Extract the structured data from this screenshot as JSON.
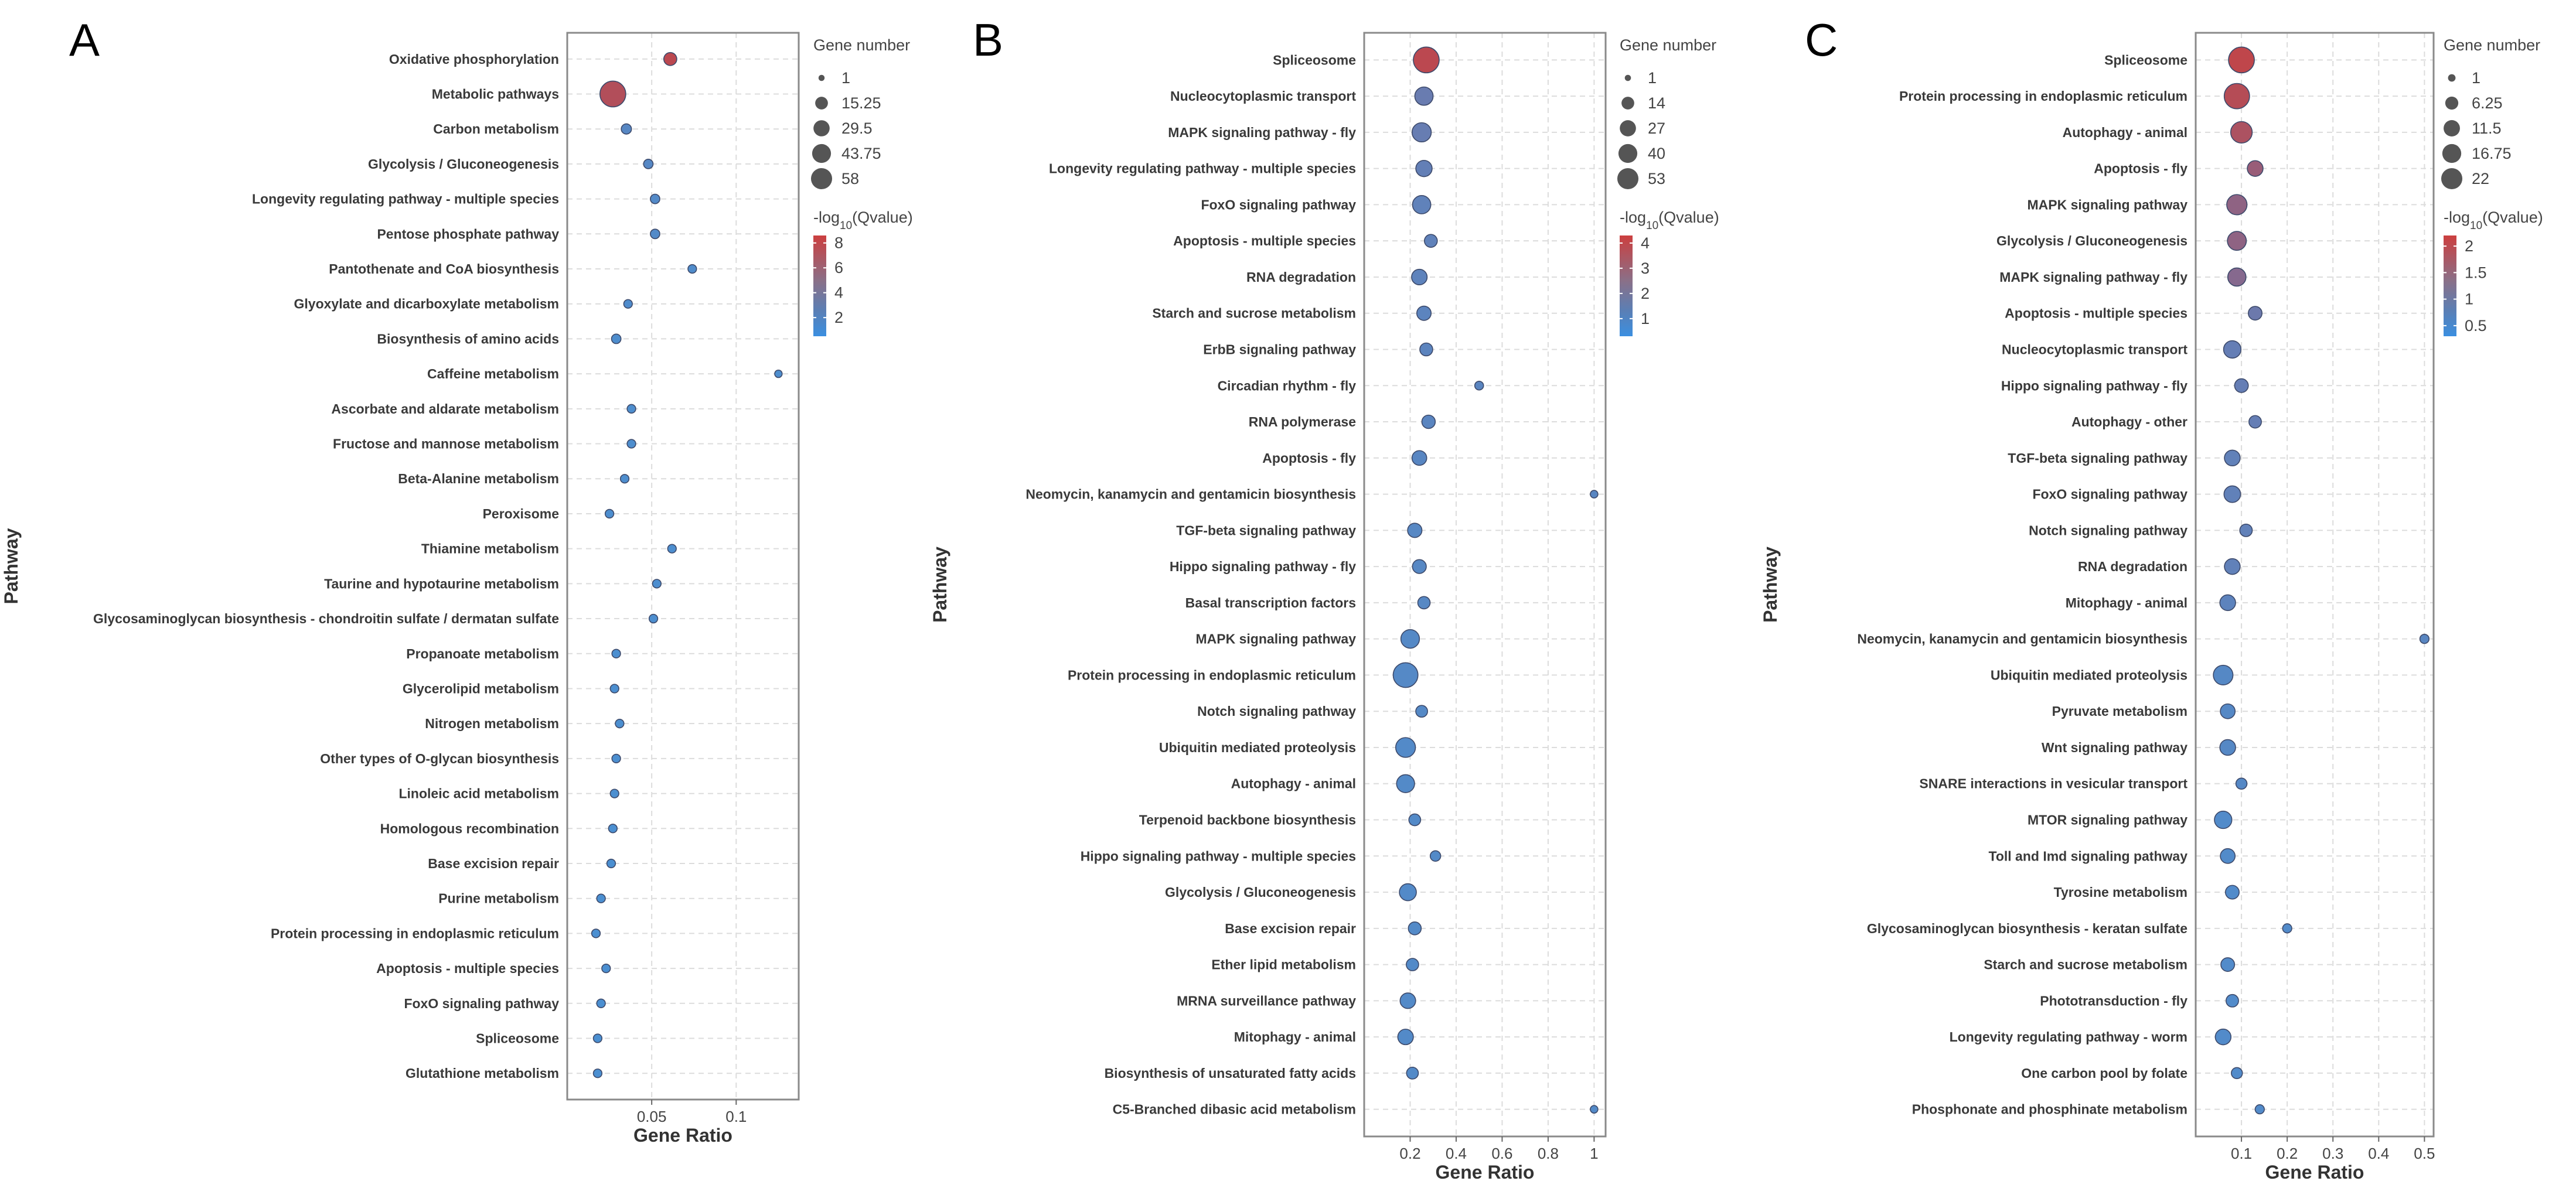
{
  "chart_data": [
    {
      "type": "scatter",
      "panel": "A",
      "xlabel": "Gene Ratio",
      "ylabel": "Pathway",
      "xlim": [
        0,
        0.137
      ],
      "xticks": [
        0.05,
        0.1
      ],
      "xtick_labels": [
        "0.05",
        "0.1"
      ],
      "size_legend_title": "Gene number",
      "size_legend": [
        1,
        15.25,
        29.5,
        43.75,
        58
      ],
      "size_legend_labels": [
        "1",
        "15.25",
        "29.5",
        "43.75",
        "58"
      ],
      "color_legend_title": "-log10(Qvalue)",
      "color_range": [
        0.5,
        8.6
      ],
      "color_ticks": [
        8,
        6,
        4,
        2
      ],
      "color_tick_labels": [
        "8",
        "6",
        "4",
        "2"
      ],
      "pathways": [
        "Oxidative phosphorylation",
        "Metabolic pathways",
        "Carbon metabolism",
        "Glycolysis / Gluconeogenesis",
        "Longevity regulating pathway - multiple species",
        "Pentose phosphate pathway",
        "Pantothenate and CoA biosynthesis",
        "Glyoxylate and dicarboxylate metabolism",
        "Biosynthesis of amino acids",
        "Caffeine metabolism",
        "Ascorbate and aldarate metabolism",
        "Fructose and mannose metabolism",
        "Beta-Alanine metabolism",
        "Peroxisome",
        "Thiamine metabolism",
        "Taurine and hypotaurine metabolism",
        "Glycosaminoglycan biosynthesis - chondroitin sulfate / dermatan sulfate",
        "Propanoate metabolism",
        "Glycerolipid metabolism",
        "Nitrogen metabolism",
        "Other types of O-glycan biosynthesis",
        "Linoleic acid metabolism",
        "Homologous recombination",
        "Base excision repair",
        "Purine metabolism",
        "Protein processing in endoplasmic reticulum",
        "Apoptosis - multiple species",
        "FoxO signaling pathway",
        "Spliceosome",
        "Glutathione metabolism"
      ],
      "gene_ratio": [
        0.061,
        0.027,
        0.035,
        0.048,
        0.052,
        0.052,
        0.074,
        0.036,
        0.029,
        0.125,
        0.038,
        0.038,
        0.034,
        0.025,
        0.062,
        0.053,
        0.051,
        0.029,
        0.028,
        0.031,
        0.029,
        0.028,
        0.027,
        0.026,
        0.02,
        0.017,
        0.023,
        0.02,
        0.018,
        0.018
      ],
      "gene_number": [
        9,
        58,
        4,
        3,
        3,
        3,
        2,
        2,
        3,
        1,
        2,
        2,
        2,
        2,
        2,
        2,
        2,
        2,
        2,
        2,
        2,
        2,
        2,
        2,
        2,
        2,
        2,
        2,
        2,
        2
      ],
      "neg_log10_q": [
        8,
        7.6,
        2,
        1.8,
        1.5,
        1.5,
        1.2,
        1.1,
        1,
        0.9,
        0.9,
        0.9,
        0.9,
        0.8,
        0.8,
        0.8,
        0.8,
        0.7,
        0.7,
        0.7,
        0.7,
        0.7,
        0.6,
        0.6,
        0.6,
        0.6,
        0.6,
        0.6,
        0.6,
        0.6
      ]
    },
    {
      "type": "scatter",
      "panel": "B",
      "xlabel": "Gene Ratio",
      "ylabel": "Pathway",
      "xlim": [
        0,
        1.05
      ],
      "xticks": [
        0.2,
        0.4,
        0.6,
        0.8,
        1
      ],
      "xtick_labels": [
        "0.2",
        "0.4",
        "0.6",
        "0.8",
        "1"
      ],
      "size_legend_title": "Gene number",
      "size_legend": [
        1,
        14,
        27,
        40,
        53
      ],
      "size_legend_labels": [
        "1",
        "14",
        "27",
        "40",
        "53"
      ],
      "color_legend_title": "-log10(Qvalue)",
      "color_range": [
        0.3,
        4.3
      ],
      "color_ticks": [
        4,
        3,
        2,
        1
      ],
      "color_tick_labels": [
        "4",
        "3",
        "2",
        "1"
      ],
      "pathways": [
        "Spliceosome",
        "Nucleocytoplasmic transport",
        "MAPK signaling pathway - fly",
        "Longevity regulating pathway - multiple species",
        "FoxO signaling pathway",
        "Apoptosis - multiple species",
        "RNA degradation",
        "Starch and sucrose metabolism",
        "ErbB signaling pathway",
        "Circadian rhythm - fly",
        "RNA polymerase",
        "Apoptosis - fly",
        "Neomycin, kanamycin and gentamicin biosynthesis",
        "TGF-beta signaling pathway",
        "Hippo signaling pathway - fly",
        "Basal transcription factors",
        "MAPK signaling pathway",
        "Protein processing in endoplasmic reticulum",
        "Notch signaling pathway",
        "Ubiquitin mediated proteolysis",
        "Autophagy - animal",
        "Terpenoid backbone biosynthesis",
        "Hippo signaling pathway - multiple species",
        "Glycolysis / Gluconeogenesis",
        "Base excision repair",
        "Ether lipid metabolism",
        "MRNA surveillance pathway",
        "Mitophagy - animal",
        "Biosynthesis of unsaturated fatty acids",
        "C5-Branched dibasic acid metabolism"
      ],
      "gene_ratio": [
        0.27,
        0.26,
        0.25,
        0.26,
        0.25,
        0.29,
        0.24,
        0.26,
        0.27,
        0.5,
        0.28,
        0.24,
        1,
        0.22,
        0.24,
        0.26,
        0.2,
        0.18,
        0.25,
        0.18,
        0.18,
        0.22,
        0.31,
        0.19,
        0.22,
        0.21,
        0.19,
        0.18,
        0.21,
        1
      ],
      "gene_number": [
        53,
        22,
        25,
        16,
        22,
        8,
        14,
        11,
        8,
        2,
        9,
        12,
        1,
        11,
        10,
        7,
        23,
        48,
        6,
        27,
        21,
        6,
        4,
        18,
        8,
        7,
        14,
        14,
        6,
        1
      ],
      "neg_log10_q": [
        4,
        2,
        1.9,
        1.7,
        1.5,
        1.5,
        1.4,
        1.3,
        1.3,
        1.2,
        1.2,
        1.1,
        1.1,
        1,
        1,
        1,
        0.9,
        0.9,
        0.9,
        0.8,
        0.8,
        0.8,
        0.8,
        0.8,
        0.8,
        0.8,
        0.8,
        0.8,
        0.8,
        0.8
      ]
    },
    {
      "type": "scatter",
      "panel": "C",
      "xlabel": "Gene Ratio",
      "ylabel": "Pathway",
      "xlim": [
        0,
        0.52
      ],
      "xticks": [
        0.1,
        0.2,
        0.3,
        0.4,
        0.5
      ],
      "xtick_labels": [
        "0.1",
        "0.2",
        "0.3",
        "0.4",
        "0.5"
      ],
      "size_legend_title": "Gene number",
      "size_legend": [
        1,
        6.25,
        11.5,
        16.75,
        22
      ],
      "size_legend_labels": [
        "1",
        "6.25",
        "11.5",
        "16.75",
        "22"
      ],
      "color_legend_title": "-log10(Qvalue)",
      "color_range": [
        0.3,
        2.2
      ],
      "color_ticks": [
        2,
        1.5,
        1,
        0.5
      ],
      "color_tick_labels": [
        "2",
        "1.5",
        "1",
        "0.5"
      ],
      "pathways": [
        "Spliceosome",
        "Protein processing in endoplasmic reticulum",
        "Autophagy - animal",
        "Apoptosis - fly",
        "MAPK signaling pathway",
        "Glycolysis / Gluconeogenesis",
        "MAPK signaling pathway - fly",
        "Apoptosis - multiple species",
        "Nucleocytoplasmic transport",
        "Hippo signaling pathway - fly",
        "Autophagy - other",
        "TGF-beta signaling pathway",
        "FoxO signaling pathway",
        "Notch signaling pathway",
        "RNA degradation",
        "Mitophagy - animal",
        "Neomycin, kanamycin and gentamicin biosynthesis",
        "Ubiquitin mediated proteolysis",
        "Pyruvate metabolism",
        "Wnt signaling pathway",
        "SNARE interactions in vesicular transport",
        "MTOR signaling pathway",
        "Toll and Imd signaling pathway",
        "Tyrosine metabolism",
        "Glycosaminoglycan biosynthesis - keratan sulfate",
        "Starch and sucrose metabolism",
        "Phototransduction - fly",
        "Longevity regulating pathway - worm",
        "One carbon pool by folate",
        "Phosphonate and phosphinate metabolism"
      ],
      "gene_ratio": [
        0.1,
        0.09,
        0.1,
        0.13,
        0.09,
        0.09,
        0.09,
        0.13,
        0.08,
        0.1,
        0.13,
        0.08,
        0.08,
        0.11,
        0.08,
        0.07,
        0.5,
        0.06,
        0.07,
        0.07,
        0.1,
        0.06,
        0.07,
        0.08,
        0.2,
        0.07,
        0.08,
        0.06,
        0.09,
        0.14
      ],
      "gene_number": [
        22,
        21,
        14,
        6,
        12,
        10,
        9,
        4,
        8,
        4,
        3,
        6,
        7,
        3,
        6,
        6,
        1,
        11,
        5,
        6,
        2,
        8,
        5,
        4,
        1,
        4,
        3,
        6,
        2,
        1
      ],
      "neg_log10_q": [
        2.1,
        2,
        1.9,
        1.7,
        1.6,
        1.6,
        1.5,
        1.2,
        1,
        1,
        1,
        0.9,
        0.9,
        0.9,
        0.9,
        0.8,
        0.7,
        0.6,
        0.6,
        0.6,
        0.6,
        0.5,
        0.5,
        0.5,
        0.5,
        0.5,
        0.5,
        0.5,
        0.5,
        0.5
      ]
    }
  ]
}
